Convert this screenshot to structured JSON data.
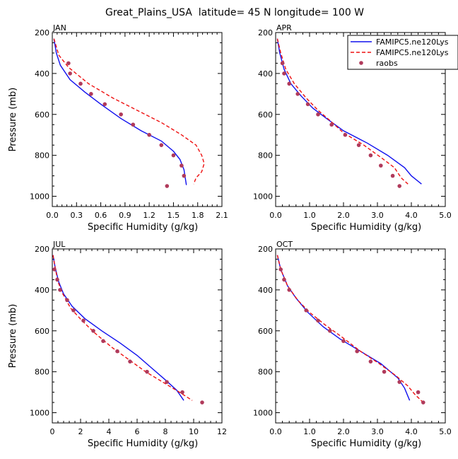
{
  "title": "Great_Plains_USA  latitude= 45 N longitude= 100 W",
  "legend": {
    "entries": [
      {
        "label": "FAMIPC5.ne120Lys",
        "style": "solid",
        "color": "#1010ee"
      },
      {
        "label": "FAMIPC5.ne120Lys",
        "style": "dashed",
        "color": "#ee1010"
      },
      {
        "label": "raobs",
        "style": "dot",
        "color": "#b03a5b"
      }
    ]
  },
  "colors": {
    "model_solid": "#1010ee",
    "model_dashed": "#ee1010",
    "raobs": "#b03a5b"
  },
  "chart_data": [
    {
      "type": "line",
      "panel": "JAN",
      "xlabel": "Specific Humidity (g/kg)",
      "ylabel": "Pressure (mb)",
      "xlim": [
        0,
        2.1
      ],
      "ylim": [
        200,
        1050
      ],
      "y_inverted": true,
      "x_ticks": [
        "0.0",
        "0.3",
        "0.6",
        "0.9",
        "1.2",
        "1.5",
        "1.8",
        "2.1"
      ],
      "x_tick_values": [
        0,
        0.3,
        0.6,
        0.9,
        1.2,
        1.5,
        1.8,
        2.1
      ],
      "y_ticks": [
        "200",
        "400",
        "600",
        "800",
        "1000"
      ],
      "y_tick_values": [
        200,
        400,
        600,
        800,
        1000
      ],
      "series": [
        {
          "style": "solid",
          "points": [
            [
              0.02,
              230
            ],
            [
              0.05,
              300
            ],
            [
              0.1,
              360
            ],
            [
              0.22,
              430
            ],
            [
              0.4,
              490
            ],
            [
              0.6,
              550
            ],
            [
              0.85,
              620
            ],
            [
              1.1,
              680
            ],
            [
              1.35,
              730
            ],
            [
              1.5,
              780
            ],
            [
              1.58,
              820
            ],
            [
              1.63,
              870
            ],
            [
              1.66,
              945
            ]
          ]
        },
        {
          "style": "dashed",
          "points": [
            [
              0.02,
              230
            ],
            [
              0.08,
              310
            ],
            [
              0.2,
              370
            ],
            [
              0.45,
              450
            ],
            [
              0.75,
              520
            ],
            [
              1.05,
              580
            ],
            [
              1.35,
              640
            ],
            [
              1.6,
              700
            ],
            [
              1.78,
              750
            ],
            [
              1.85,
              800
            ],
            [
              1.88,
              840
            ],
            [
              1.85,
              880
            ],
            [
              1.78,
              910
            ],
            [
              1.75,
              940
            ]
          ]
        },
        {
          "style": "dot",
          "points": [
            [
              0.2,
              350
            ],
            [
              0.22,
              400
            ],
            [
              0.35,
              450
            ],
            [
              0.48,
              500
            ],
            [
              0.65,
              550
            ],
            [
              0.85,
              600
            ],
            [
              1.0,
              650
            ],
            [
              1.2,
              700
            ],
            [
              1.35,
              750
            ],
            [
              1.5,
              800
            ],
            [
              1.6,
              850
            ],
            [
              1.63,
              900
            ],
            [
              1.42,
              950
            ]
          ]
        }
      ]
    },
    {
      "type": "line",
      "panel": "APR",
      "xlabel": "Specific Humidity (g/kg)",
      "ylabel": "",
      "xlim": [
        0,
        5
      ],
      "ylim": [
        200,
        1050
      ],
      "y_inverted": true,
      "x_ticks": [
        "0.0",
        "1.0",
        "2.0",
        "3.0",
        "4.0",
        "5.0"
      ],
      "x_tick_values": [
        0,
        1,
        2,
        3,
        4,
        5
      ],
      "y_ticks": [
        "200",
        "400",
        "600",
        "800",
        "1000"
      ],
      "y_tick_values": [
        200,
        400,
        600,
        800,
        1000
      ],
      "series": [
        {
          "style": "solid",
          "points": [
            [
              0.05,
              230
            ],
            [
              0.12,
              300
            ],
            [
              0.25,
              380
            ],
            [
              0.45,
              450
            ],
            [
              0.75,
              510
            ],
            [
              1.1,
              570
            ],
            [
              1.5,
              620
            ],
            [
              2.0,
              680
            ],
            [
              2.7,
              740
            ],
            [
              3.3,
              800
            ],
            [
              3.8,
              860
            ],
            [
              4.0,
              900
            ],
            [
              4.3,
              940
            ]
          ]
        },
        {
          "style": "dashed",
          "points": [
            [
              0.05,
              230
            ],
            [
              0.15,
              300
            ],
            [
              0.3,
              380
            ],
            [
              0.55,
              450
            ],
            [
              0.9,
              520
            ],
            [
              1.25,
              580
            ],
            [
              1.6,
              630
            ],
            [
              2.0,
              690
            ],
            [
              2.6,
              750
            ],
            [
              3.1,
              810
            ],
            [
              3.5,
              860
            ],
            [
              3.7,
              910
            ],
            [
              3.9,
              940
            ]
          ]
        },
        {
          "style": "dot",
          "points": [
            [
              0.2,
              350
            ],
            [
              0.25,
              400
            ],
            [
              0.4,
              450
            ],
            [
              0.65,
              500
            ],
            [
              0.95,
              550
            ],
            [
              1.25,
              600
            ],
            [
              1.65,
              650
            ],
            [
              2.05,
              700
            ],
            [
              2.45,
              750
            ],
            [
              2.8,
              800
            ],
            [
              3.1,
              850
            ],
            [
              3.45,
              900
            ],
            [
              3.65,
              950
            ]
          ]
        }
      ]
    },
    {
      "type": "line",
      "panel": "JUL",
      "xlabel": "Specific Humidity (g/kg)",
      "ylabel": "Pressure (mb)",
      "xlim": [
        0,
        12
      ],
      "ylim": [
        200,
        1050
      ],
      "y_inverted": true,
      "x_ticks": [
        "0",
        "2",
        "4",
        "6",
        "8",
        "10",
        "12"
      ],
      "x_tick_values": [
        0,
        2,
        4,
        6,
        8,
        10,
        12
      ],
      "y_ticks": [
        "200",
        "400",
        "600",
        "800",
        "1000"
      ],
      "y_tick_values": [
        200,
        400,
        600,
        800,
        1000
      ],
      "series": [
        {
          "style": "solid",
          "points": [
            [
              0.05,
              230
            ],
            [
              0.2,
              290
            ],
            [
              0.45,
              360
            ],
            [
              0.8,
              420
            ],
            [
              1.4,
              480
            ],
            [
              2.3,
              540
            ],
            [
              3.5,
              600
            ],
            [
              4.8,
              660
            ],
            [
              6.0,
              720
            ],
            [
              7.0,
              780
            ],
            [
              8.0,
              840
            ],
            [
              8.8,
              890
            ],
            [
              9.3,
              940
            ]
          ]
        },
        {
          "style": "dashed",
          "points": [
            [
              0.05,
              230
            ],
            [
              0.2,
              290
            ],
            [
              0.4,
              360
            ],
            [
              0.75,
              420
            ],
            [
              1.3,
              490
            ],
            [
              2.1,
              550
            ],
            [
              3.0,
              610
            ],
            [
              4.2,
              680
            ],
            [
              5.4,
              740
            ],
            [
              6.6,
              800
            ],
            [
              7.8,
              850
            ],
            [
              9.0,
              900
            ],
            [
              9.9,
              940
            ]
          ]
        },
        {
          "style": "dot",
          "points": [
            [
              0.15,
              300
            ],
            [
              0.35,
              350
            ],
            [
              0.55,
              400
            ],
            [
              1.05,
              450
            ],
            [
              1.5,
              500
            ],
            [
              2.2,
              550
            ],
            [
              2.9,
              600
            ],
            [
              3.6,
              650
            ],
            [
              4.6,
              700
            ],
            [
              5.5,
              750
            ],
            [
              6.7,
              800
            ],
            [
              8.1,
              850
            ],
            [
              9.2,
              900
            ],
            [
              10.6,
              950
            ]
          ]
        }
      ]
    },
    {
      "type": "line",
      "panel": "OCT",
      "xlabel": "Specific Humidity (g/kg)",
      "ylabel": "",
      "xlim": [
        0,
        5
      ],
      "ylim": [
        200,
        1050
      ],
      "y_inverted": true,
      "x_ticks": [
        "0.0",
        "1.0",
        "2.0",
        "3.0",
        "4.0",
        "5.0"
      ],
      "x_tick_values": [
        0,
        1,
        2,
        3,
        4,
        5
      ],
      "y_ticks": [
        "200",
        "400",
        "600",
        "800",
        "1000"
      ],
      "y_tick_values": [
        200,
        400,
        600,
        800,
        1000
      ],
      "series": [
        {
          "style": "solid",
          "points": [
            [
              0.05,
              230
            ],
            [
              0.15,
              300
            ],
            [
              0.35,
              380
            ],
            [
              0.6,
              440
            ],
            [
              0.95,
              510
            ],
            [
              1.4,
              580
            ],
            [
              1.9,
              640
            ],
            [
              2.5,
              700
            ],
            [
              3.1,
              760
            ],
            [
              3.6,
              830
            ],
            [
              3.8,
              880
            ],
            [
              3.95,
              940
            ]
          ]
        },
        {
          "style": "dashed",
          "points": [
            [
              0.05,
              230
            ],
            [
              0.15,
              300
            ],
            [
              0.35,
              380
            ],
            [
              0.65,
              450
            ],
            [
              1.0,
              510
            ],
            [
              1.45,
              570
            ],
            [
              1.95,
              630
            ],
            [
              2.5,
              700
            ],
            [
              3.05,
              760
            ],
            [
              3.55,
              820
            ],
            [
              3.9,
              870
            ],
            [
              4.1,
              910
            ],
            [
              4.35,
              950
            ]
          ]
        },
        {
          "style": "dot",
          "points": [
            [
              0.15,
              300
            ],
            [
              0.25,
              350
            ],
            [
              0.4,
              400
            ],
            [
              0.9,
              500
            ],
            [
              1.25,
              550
            ],
            [
              1.6,
              600
            ],
            [
              2.0,
              650
            ],
            [
              2.4,
              700
            ],
            [
              2.8,
              750
            ],
            [
              3.2,
              800
            ],
            [
              3.65,
              850
            ],
            [
              4.2,
              900
            ],
            [
              4.35,
              950
            ]
          ]
        }
      ]
    }
  ]
}
